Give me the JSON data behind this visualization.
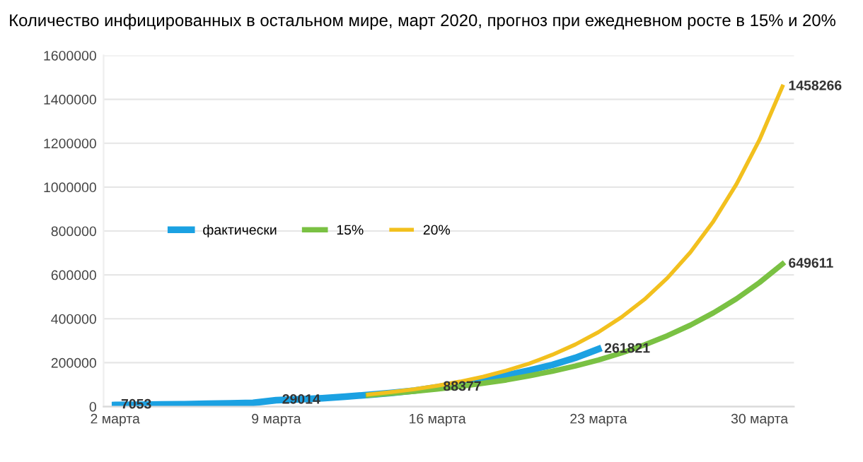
{
  "chart_data": {
    "type": "line",
    "title": "Количество инфицированных в остальном мире, март 2020, прогноз при ежедневном росте в 15% и 20%",
    "categories": [
      "2 марта",
      null,
      null,
      null,
      null,
      null,
      null,
      "9 марта",
      null,
      null,
      null,
      null,
      null,
      null,
      "16 марта",
      null,
      null,
      null,
      null,
      null,
      null,
      "23 марта",
      null,
      null,
      null,
      null,
      null,
      null,
      "30 марта",
      null
    ],
    "series": [
      {
        "name": "фактически",
        "color": "#1ba1e2",
        "values": [
          7053,
          8000,
          10000,
          11000,
          13000,
          15000,
          17000,
          29014,
          33000,
          38000,
          45000,
          53000,
          62000,
          73000,
          88377,
          104000,
          122000,
          142000,
          165000,
          190000,
          222000,
          261821,
          null,
          null,
          null,
          null,
          null,
          null,
          null,
          null
        ],
        "value_labels": [
          "7053",
          null,
          null,
          null,
          null,
          null,
          null,
          "29014",
          null,
          null,
          null,
          null,
          null,
          null,
          "88377",
          null,
          null,
          null,
          null,
          null,
          null,
          "261821",
          null,
          null,
          null,
          null,
          null,
          null,
          null,
          null
        ]
      },
      {
        "name": "15%",
        "color": "#7ac143",
        "values": [
          null,
          null,
          null,
          null,
          null,
          null,
          null,
          null,
          null,
          null,
          null,
          52000,
          60000,
          69000,
          80000,
          92000,
          106000,
          121000,
          140000,
          161000,
          185000,
          212000,
          244000,
          281000,
          323000,
          371000,
          427000,
          491000,
          565000,
          649611
        ],
        "value_labels": [
          null,
          null,
          null,
          null,
          null,
          null,
          null,
          null,
          null,
          null,
          null,
          null,
          null,
          null,
          null,
          null,
          null,
          null,
          null,
          null,
          null,
          null,
          null,
          null,
          null,
          null,
          null,
          null,
          null,
          "649611"
        ]
      },
      {
        "name": "20%",
        "color": "#f2c01e",
        "values": [
          null,
          null,
          null,
          null,
          null,
          null,
          null,
          null,
          null,
          null,
          null,
          55000,
          66000,
          79000,
          95000,
          114000,
          136000,
          164000,
          196000,
          236000,
          283000,
          339000,
          407000,
          488000,
          586000,
          703000,
          844000,
          1013000,
          1215000,
          1458266
        ],
        "value_labels": [
          null,
          null,
          null,
          null,
          null,
          null,
          null,
          null,
          null,
          null,
          null,
          null,
          null,
          null,
          null,
          null,
          null,
          null,
          null,
          null,
          null,
          null,
          null,
          null,
          null,
          null,
          null,
          null,
          null,
          "1458266"
        ]
      }
    ],
    "ylim": [
      0,
      1600000
    ],
    "yticks": [
      0,
      200000,
      400000,
      600000,
      800000,
      1000000,
      1200000,
      1400000,
      1600000
    ],
    "grid": "y",
    "legend": "center",
    "marker": "none",
    "line_style": "solid"
  }
}
